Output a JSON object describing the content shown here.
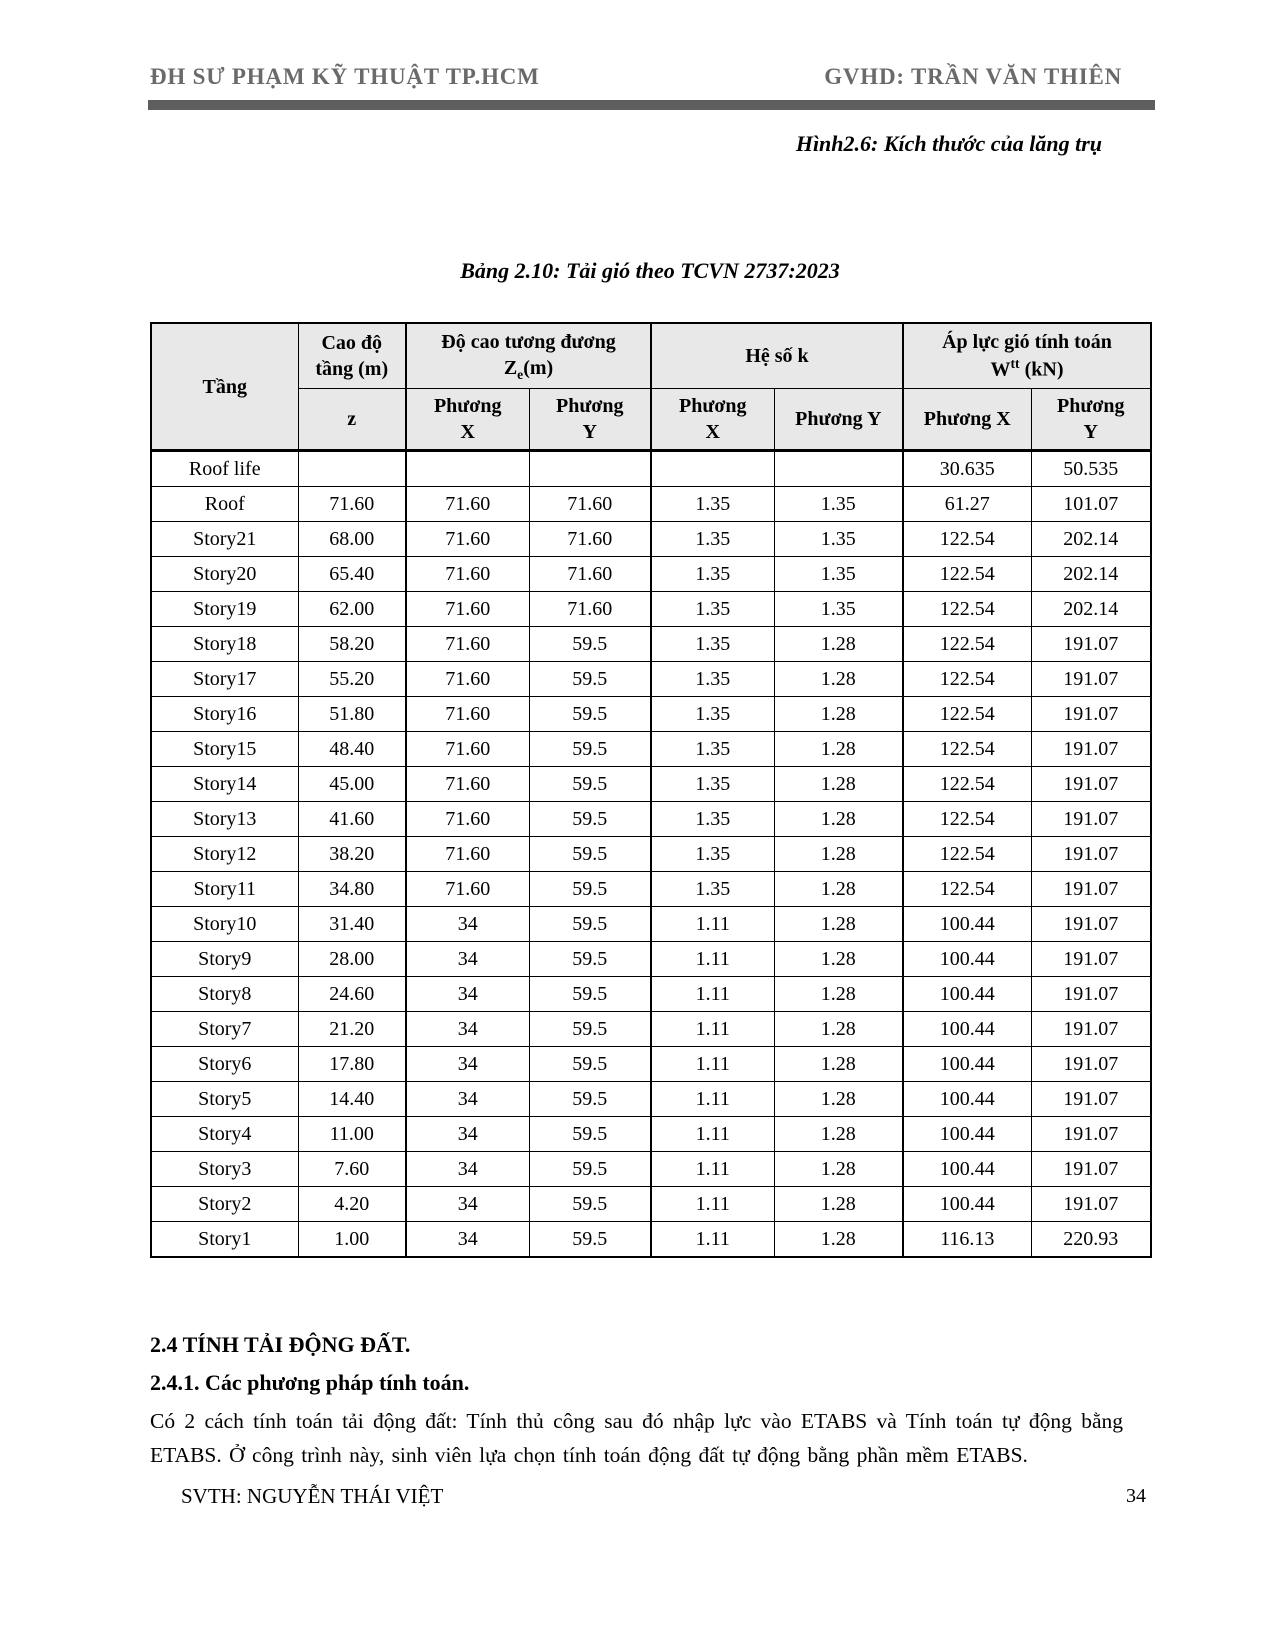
{
  "page": {
    "header": {
      "left": "ĐH SƯ PHẠM KỸ THUẬT TP.HCM",
      "right": "GVHD: TRẦN VĂN THIÊN"
    },
    "figure_caption": "Hình2.6: Kích thước của lăng trụ",
    "table_title": "Bảng 2.10: Tải gió theo TCVN 2737:2023",
    "footer": {
      "left": "SVTH: NGUYỄN THÁI VIỆT",
      "page_number": "34"
    }
  },
  "colors": {
    "header_text": "#6a6a6a",
    "header_rule": "#5e5e5e",
    "table_header_bg": "#e8e8e8",
    "body_text": "#000000"
  },
  "table": {
    "header": {
      "col_story": "Tầng",
      "col_elevation": "Cao độ\ntầng (m)",
      "col_ze_line1": "Độ cao tương đương",
      "col_ze_base": "Z",
      "col_ze_sub": "e",
      "col_ze_suffix": "(m)",
      "col_k": "Hệ số k",
      "col_w_line1": "Áp lực gió tính toán",
      "col_w_base": "W",
      "col_w_sup": "tt",
      "col_w_suffix": " (kN)",
      "sub_z": "z",
      "sub_ze_x": "Phương\nX",
      "sub_ze_y": "Phương\nY",
      "sub_k_x": "Phương\nX",
      "sub_k_y": "Phương Y",
      "sub_w_x": "Phương X",
      "sub_w_y": "Phương\nY"
    },
    "rows": [
      {
        "story": "Roof life",
        "z": "",
        "ze_x": "",
        "ze_y": "",
        "k_x": "",
        "k_y": "",
        "w_x": "30.635",
        "w_y": "50.535"
      },
      {
        "story": "Roof",
        "z": "71.60",
        "ze_x": "71.60",
        "ze_y": "71.60",
        "k_x": "1.35",
        "k_y": "1.35",
        "w_x": "61.27",
        "w_y": "101.07"
      },
      {
        "story": "Story21",
        "z": "68.00",
        "ze_x": "71.60",
        "ze_y": "71.60",
        "k_x": "1.35",
        "k_y": "1.35",
        "w_x": "122.54",
        "w_y": "202.14"
      },
      {
        "story": "Story20",
        "z": "65.40",
        "ze_x": "71.60",
        "ze_y": "71.60",
        "k_x": "1.35",
        "k_y": "1.35",
        "w_x": "122.54",
        "w_y": "202.14"
      },
      {
        "story": "Story19",
        "z": "62.00",
        "ze_x": "71.60",
        "ze_y": "71.60",
        "k_x": "1.35",
        "k_y": "1.35",
        "w_x": "122.54",
        "w_y": "202.14"
      },
      {
        "story": "Story18",
        "z": "58.20",
        "ze_x": "71.60",
        "ze_y": "59.5",
        "k_x": "1.35",
        "k_y": "1.28",
        "w_x": "122.54",
        "w_y": "191.07"
      },
      {
        "story": "Story17",
        "z": "55.20",
        "ze_x": "71.60",
        "ze_y": "59.5",
        "k_x": "1.35",
        "k_y": "1.28",
        "w_x": "122.54",
        "w_y": "191.07"
      },
      {
        "story": "Story16",
        "z": "51.80",
        "ze_x": "71.60",
        "ze_y": "59.5",
        "k_x": "1.35",
        "k_y": "1.28",
        "w_x": "122.54",
        "w_y": "191.07"
      },
      {
        "story": "Story15",
        "z": "48.40",
        "ze_x": "71.60",
        "ze_y": "59.5",
        "k_x": "1.35",
        "k_y": "1.28",
        "w_x": "122.54",
        "w_y": "191.07"
      },
      {
        "story": "Story14",
        "z": "45.00",
        "ze_x": "71.60",
        "ze_y": "59.5",
        "k_x": "1.35",
        "k_y": "1.28",
        "w_x": "122.54",
        "w_y": "191.07"
      },
      {
        "story": "Story13",
        "z": "41.60",
        "ze_x": "71.60",
        "ze_y": "59.5",
        "k_x": "1.35",
        "k_y": "1.28",
        "w_x": "122.54",
        "w_y": "191.07"
      },
      {
        "story": "Story12",
        "z": "38.20",
        "ze_x": "71.60",
        "ze_y": "59.5",
        "k_x": "1.35",
        "k_y": "1.28",
        "w_x": "122.54",
        "w_y": "191.07"
      },
      {
        "story": "Story11",
        "z": "34.80",
        "ze_x": "71.60",
        "ze_y": "59.5",
        "k_x": "1.35",
        "k_y": "1.28",
        "w_x": "122.54",
        "w_y": "191.07"
      },
      {
        "story": "Story10",
        "z": "31.40",
        "ze_x": "34",
        "ze_y": "59.5",
        "k_x": "1.11",
        "k_y": "1.28",
        "w_x": "100.44",
        "w_y": "191.07"
      },
      {
        "story": "Story9",
        "z": "28.00",
        "ze_x": "34",
        "ze_y": "59.5",
        "k_x": "1.11",
        "k_y": "1.28",
        "w_x": "100.44",
        "w_y": "191.07"
      },
      {
        "story": "Story8",
        "z": "24.60",
        "ze_x": "34",
        "ze_y": "59.5",
        "k_x": "1.11",
        "k_y": "1.28",
        "w_x": "100.44",
        "w_y": "191.07"
      },
      {
        "story": "Story7",
        "z": "21.20",
        "ze_x": "34",
        "ze_y": "59.5",
        "k_x": "1.11",
        "k_y": "1.28",
        "w_x": "100.44",
        "w_y": "191.07"
      },
      {
        "story": "Story6",
        "z": "17.80",
        "ze_x": "34",
        "ze_y": "59.5",
        "k_x": "1.11",
        "k_y": "1.28",
        "w_x": "100.44",
        "w_y": "191.07"
      },
      {
        "story": "Story5",
        "z": "14.40",
        "ze_x": "34",
        "ze_y": "59.5",
        "k_x": "1.11",
        "k_y": "1.28",
        "w_x": "100.44",
        "w_y": "191.07"
      },
      {
        "story": "Story4",
        "z": "11.00",
        "ze_x": "34",
        "ze_y": "59.5",
        "k_x": "1.11",
        "k_y": "1.28",
        "w_x": "100.44",
        "w_y": "191.07"
      },
      {
        "story": "Story3",
        "z": "7.60",
        "ze_x": "34",
        "ze_y": "59.5",
        "k_x": "1.11",
        "k_y": "1.28",
        "w_x": "100.44",
        "w_y": "191.07"
      },
      {
        "story": "Story2",
        "z": "4.20",
        "ze_x": "34",
        "ze_y": "59.5",
        "k_x": "1.11",
        "k_y": "1.28",
        "w_x": "100.44",
        "w_y": "191.07"
      },
      {
        "story": "Story1",
        "z": "1.00",
        "ze_x": "34",
        "ze_y": "59.5",
        "k_x": "1.11",
        "k_y": "1.28",
        "w_x": "116.13",
        "w_y": "220.93"
      }
    ]
  },
  "section": {
    "heading": "2.4 TÍNH TẢI ĐỘNG ĐẤT.",
    "subheading": "2.4.1. Các phương pháp tính toán.",
    "paragraph": "Có 2 cách tính toán tải động đất: Tính thủ công sau đó nhập lực vào ETABS và Tính toán tự động bằng ETABS. Ở công trình này, sinh viên lựa chọn tính toán động đất tự động bằng phần mềm ETABS."
  }
}
